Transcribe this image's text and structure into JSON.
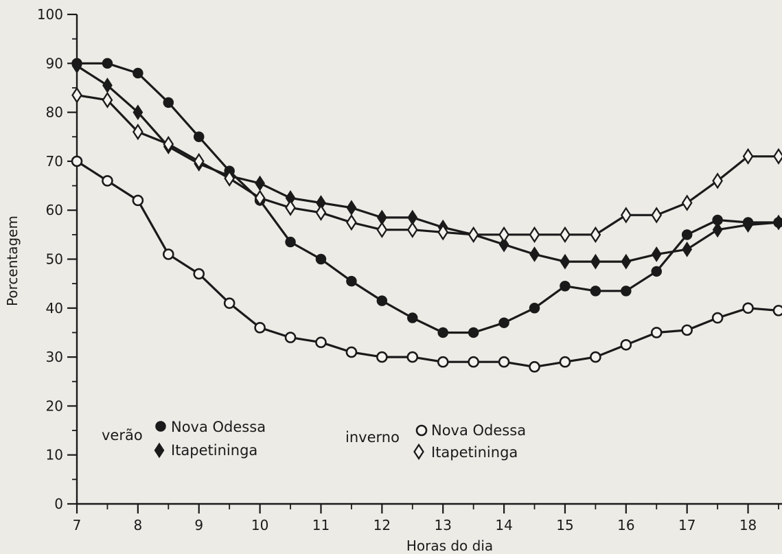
{
  "chart_data": {
    "type": "line",
    "title": "",
    "xlabel": "Horas do dia",
    "ylabel": "Porcentagem",
    "xlim": [
      7,
      18.5
    ],
    "ylim": [
      0,
      100
    ],
    "x_ticks": [
      7,
      8,
      9,
      10,
      11,
      12,
      13,
      14,
      15,
      16,
      17,
      18
    ],
    "y_ticks": [
      0,
      10,
      20,
      30,
      40,
      50,
      60,
      70,
      80,
      90,
      100
    ],
    "grid": false,
    "legend_groups": [
      {
        "label": "verão",
        "entries": [
          "Nova Odessa",
          "Itapetininga"
        ]
      },
      {
        "label": "inverno",
        "entries": [
          "Nova Odessa",
          "Itapetininga"
        ]
      }
    ],
    "series": [
      {
        "season": "verão",
        "name": "Nova Odessa",
        "marker": "filled-circle",
        "x": [
          7,
          7.5,
          8,
          8.5,
          9,
          9.5,
          10,
          10.5,
          11,
          11.5,
          12,
          12.5,
          13,
          13.5,
          14,
          14.5,
          15,
          15.5,
          16,
          16.5,
          17,
          17.5,
          18,
          18.5
        ],
        "values": [
          90,
          90,
          88,
          82,
          75,
          68,
          62,
          53.5,
          50,
          45.5,
          41.5,
          38,
          35,
          35,
          37,
          40,
          44.5,
          43.5,
          43.5,
          47.5,
          55,
          58,
          57.5,
          57.5
        ]
      },
      {
        "season": "verão",
        "name": "Itapetininga",
        "marker": "filled-diamond",
        "x": [
          7,
          7.5,
          8,
          8.5,
          9,
          9.5,
          10,
          10.5,
          11,
          11.5,
          12,
          12.5,
          13,
          13.5,
          14,
          14.5,
          15,
          15.5,
          16,
          16.5,
          17,
          17.5,
          18,
          18.5
        ],
        "values": [
          89.5,
          85.5,
          80,
          73,
          69.5,
          67,
          65.5,
          62.5,
          61.5,
          60.5,
          58.5,
          58.5,
          56.5,
          55,
          53,
          51,
          49.5,
          49.5,
          49.5,
          51,
          52,
          56,
          57,
          57.5
        ]
      },
      {
        "season": "inverno",
        "name": "Nova Odessa",
        "marker": "open-circle",
        "x": [
          7,
          7.5,
          8,
          8.5,
          9,
          9.5,
          10,
          10.5,
          11,
          11.5,
          12,
          12.5,
          13,
          13.5,
          14,
          14.5,
          15,
          15.5,
          16,
          16.5,
          17,
          17.5,
          18,
          18.5
        ],
        "values": [
          70,
          66,
          62,
          51,
          47,
          41,
          36,
          34,
          33,
          31,
          30,
          30,
          29,
          29,
          29,
          28,
          29,
          30,
          32.5,
          35,
          35.5,
          38,
          40,
          39.5
        ]
      },
      {
        "season": "inverno",
        "name": "Itapetininga",
        "marker": "open-diamond",
        "x": [
          7,
          7.5,
          8,
          8.5,
          9,
          9.5,
          10,
          10.5,
          11,
          11.5,
          12,
          12.5,
          13,
          13.5,
          14,
          14.5,
          15,
          15.5,
          16,
          16.5,
          17,
          17.5,
          18,
          18.5
        ],
        "values": [
          83.5,
          82.5,
          76,
          73.5,
          70,
          66.5,
          62.5,
          60.5,
          59.5,
          57.5,
          56,
          56,
          55.5,
          55,
          55,
          55,
          55,
          55,
          59,
          59,
          61.5,
          66,
          71,
          71
        ]
      }
    ]
  }
}
